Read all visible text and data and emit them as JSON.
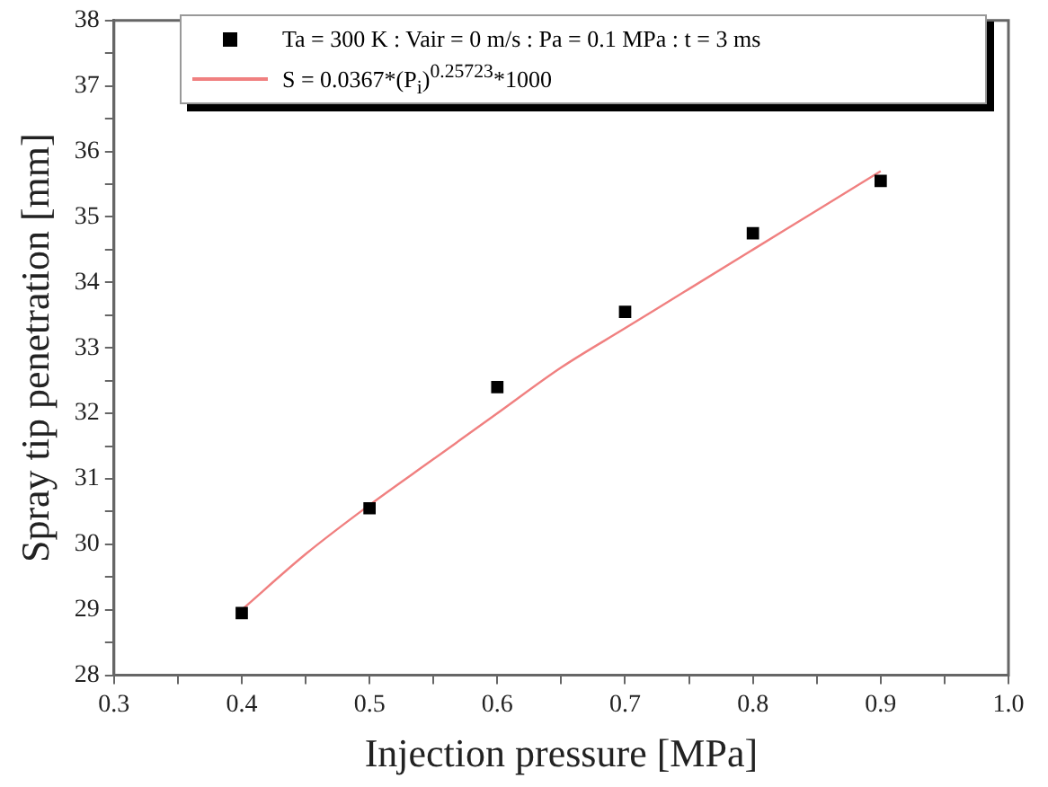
{
  "chart_data": {
    "type": "scatter",
    "xlabel": "Injection pressure [MPa]",
    "ylabel": "Spray tip penetration [mm]",
    "xlim": [
      0.3,
      1.0
    ],
    "ylim": [
      28,
      38
    ],
    "xticks": [
      {
        "value": 0.3,
        "label": "0.3"
      },
      {
        "value": 0.35,
        "label": null
      },
      {
        "value": 0.4,
        "label": "0.4"
      },
      {
        "value": 0.45,
        "label": null
      },
      {
        "value": 0.5,
        "label": "0.5"
      },
      {
        "value": 0.55,
        "label": null
      },
      {
        "value": 0.6,
        "label": "0.6"
      },
      {
        "value": 0.65,
        "label": null
      },
      {
        "value": 0.7,
        "label": "0.7"
      },
      {
        "value": 0.75,
        "label": null
      },
      {
        "value": 0.8,
        "label": "0.8"
      },
      {
        "value": 0.85,
        "label": null
      },
      {
        "value": 0.9,
        "label": "0.9"
      },
      {
        "value": 0.95,
        "label": null
      },
      {
        "value": 1.0,
        "label": "1.0"
      }
    ],
    "yticks": [
      28,
      {
        "value": 28.5,
        "label": null
      },
      29,
      {
        "value": 29.5,
        "label": null
      },
      30,
      {
        "value": 30.5,
        "label": null
      },
      31,
      {
        "value": 31.5,
        "label": null
      },
      32,
      {
        "value": 32.5,
        "label": null
      },
      33,
      {
        "value": 33.5,
        "label": null
      },
      34,
      {
        "value": 34.5,
        "label": null
      },
      35,
      {
        "value": 35.5,
        "label": null
      },
      36,
      {
        "value": 36.5,
        "label": null
      },
      37,
      {
        "value": 37.5,
        "label": null
      },
      38
    ],
    "grid": false,
    "legend": "top",
    "series": [
      {
        "name": "Ta = 300 K : Vair = 0 m/s : Pa = 0.1 MPa : t = 3 ms",
        "color": "#000000",
        "marker": "square",
        "x": [
          0.4,
          0.5,
          0.6,
          0.7,
          0.8,
          0.9
        ],
        "values": [
          28.95,
          30.55,
          32.4,
          33.55,
          34.75,
          35.55
        ]
      },
      {
        "type": "line",
        "name": "S = 0.0367*(P$_{i}$)$^{0.25723}$*1000",
        "color": "#f08080",
        "marker": "none",
        "line_style": "solid",
        "x": [
          0.4,
          0.45,
          0.5,
          0.55,
          0.6,
          0.65,
          0.7,
          0.75,
          0.8,
          0.85,
          0.9
        ],
        "values": [
          29.0,
          29.85,
          30.6,
          31.3,
          32.0,
          32.7,
          33.3,
          33.9,
          34.5,
          35.1,
          35.7
        ]
      }
    ]
  }
}
